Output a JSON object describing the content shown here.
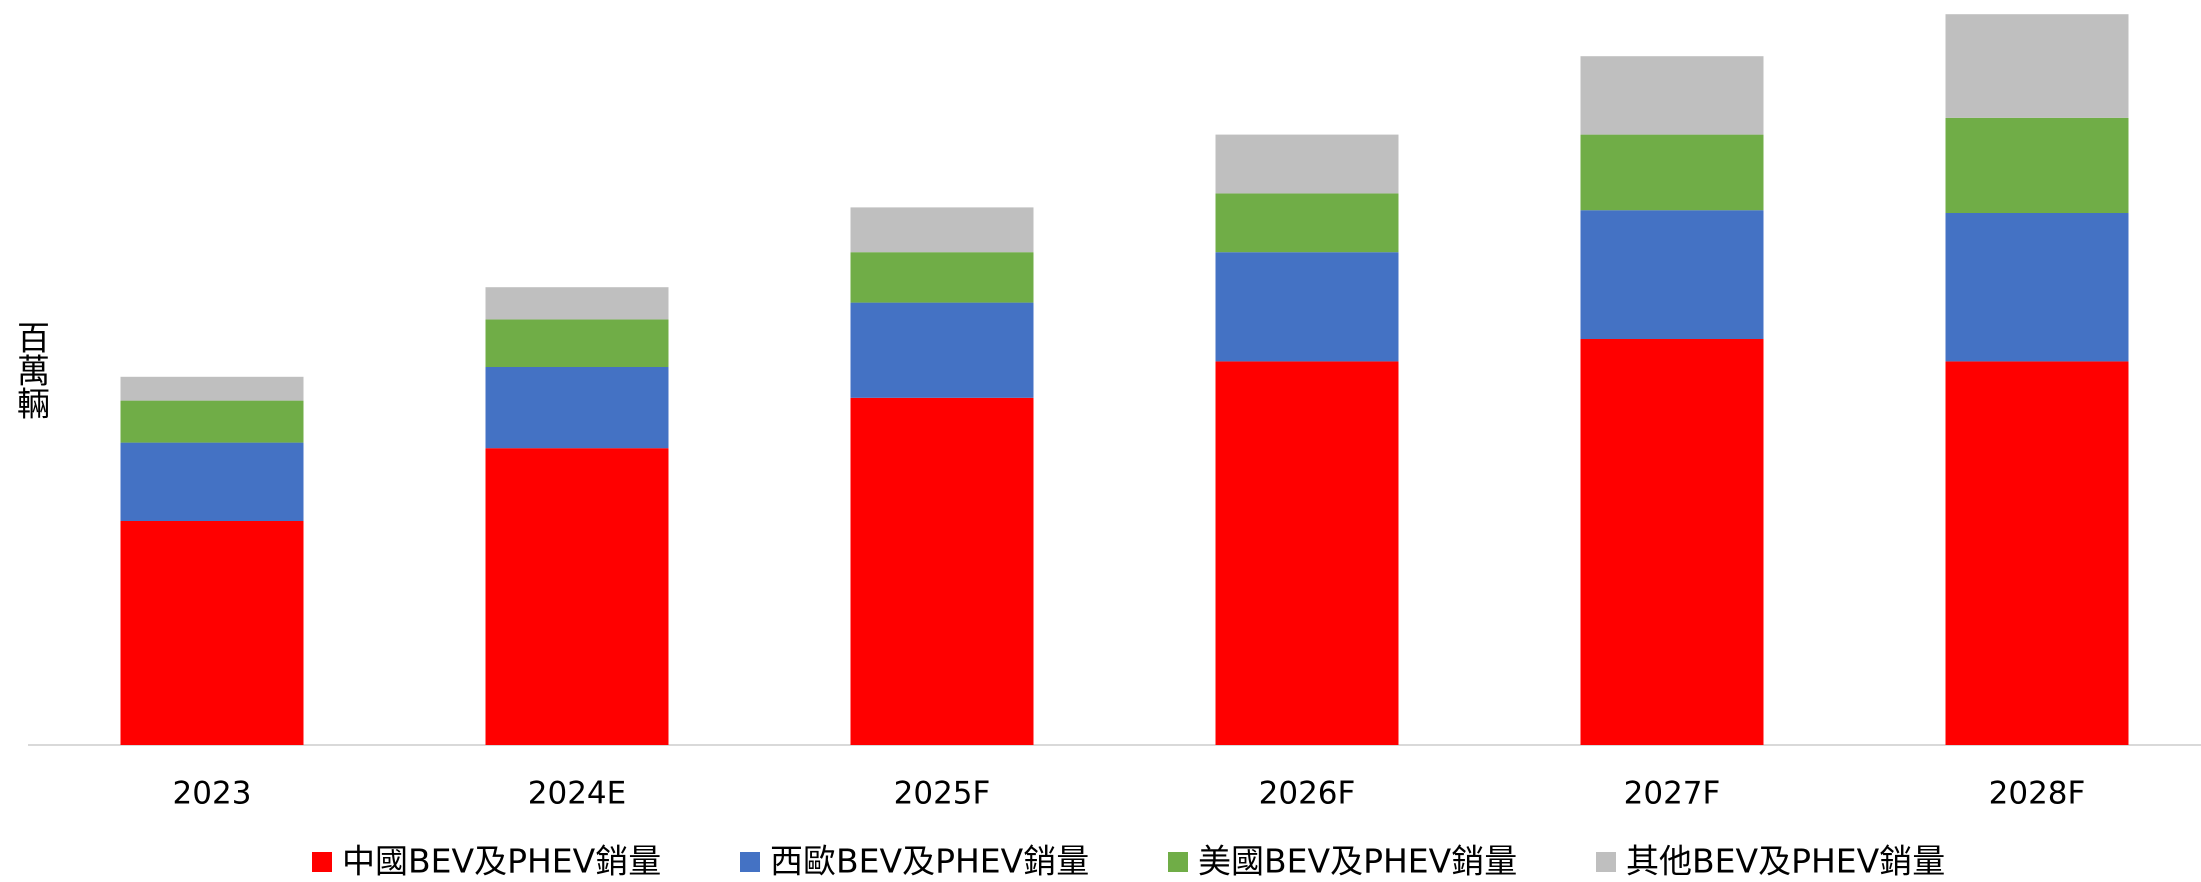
{
  "chart_data": {
    "type": "stacked_bar",
    "y_label": "百萬輛",
    "categories": [
      "2023",
      "2024E",
      "2025F",
      "2026F",
      "2027F",
      "2028F"
    ],
    "series": [
      {
        "name": "中國BEV及PHEV銷量",
        "color": "#ff0000",
        "values": [
          8.0,
          10.6,
          12.4,
          13.7,
          14.5,
          13.7
        ]
      },
      {
        "name": "西歐BEV及PHEV銷量",
        "color": "#4472c4",
        "values": [
          2.8,
          2.9,
          3.4,
          3.9,
          4.6,
          5.3
        ]
      },
      {
        "name": "美國BEV及PHEV銷量",
        "color": "#70ad47",
        "values": [
          1.5,
          1.7,
          1.8,
          2.1,
          2.7,
          3.4
        ]
      },
      {
        "name": "其他BEV及PHEV銷量",
        "color": "#bfbfbf",
        "values": [
          0.85,
          1.15,
          1.6,
          2.1,
          2.8,
          3.7
        ]
      }
    ],
    "ylim": [
      0,
      26.5
    ],
    "legend": "bottom"
  }
}
